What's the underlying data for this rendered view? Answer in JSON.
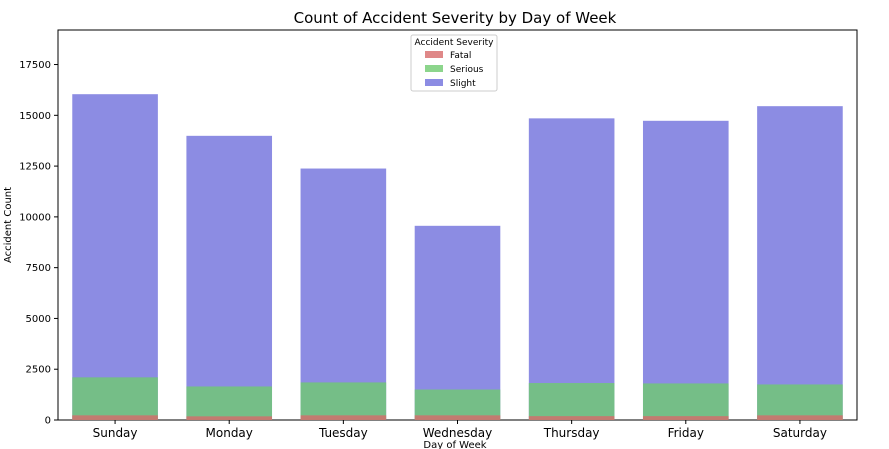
{
  "chart_data": {
    "type": "bar",
    "stacked": true,
    "overlapped_transparent_bars": true,
    "title": "Count of Accident Severity by Day of Week",
    "xlabel": "Day of Week",
    "ylabel": "Accident Count",
    "categories": [
      "Sunday",
      "Monday",
      "Tuesday",
      "Wednesday",
      "Thursday",
      "Friday",
      "Saturday"
    ],
    "series": [
      {
        "name": "Fatal",
        "color": "#d76a6a",
        "values": [
          230,
          180,
          230,
          230,
          190,
          190,
          230
        ]
      },
      {
        "name": "Serious",
        "color": "#6fca6f",
        "values": [
          2100,
          1650,
          1850,
          1500,
          1820,
          1800,
          1750
        ]
      },
      {
        "name": "Slight",
        "color": "#6f6fdc",
        "values": [
          16040,
          13990,
          12380,
          9560,
          14850,
          14730,
          15450
        ]
      }
    ],
    "ylim": [
      0,
      19200
    ],
    "yticks": [
      0,
      2500,
      5000,
      7500,
      10000,
      12500,
      15000,
      17500
    ],
    "grid": false,
    "legend": {
      "title": "Accident Severity",
      "position": "top-center"
    }
  }
}
